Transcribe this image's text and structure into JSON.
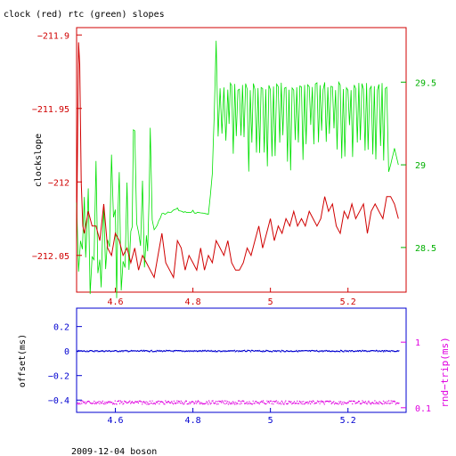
{
  "figure": {
    "title": "clock (red) rtc (green) slopes",
    "footer": "2009-12-04 boson"
  },
  "colors": {
    "clock": "#d00000",
    "rtc": "#00e000",
    "offset": "#0000d0",
    "rndtrip": "#e000e0",
    "frame_top": "#d00000",
    "frame_bottom": "#0000d0"
  },
  "chart_data": [
    {
      "type": "line",
      "title": "clock (red) rtc (green) slopes",
      "xlim": [
        4.5,
        5.35
      ],
      "x_ticks": [
        4.6,
        4.8,
        5,
        5.2
      ],
      "x_tick_labels": [
        "4.6",
        "4.8",
        "5",
        "5.2"
      ],
      "ylabel": "clockslope",
      "ylim": [
        -212.075,
        -211.895
      ],
      "y_ticks": [
        -211.9,
        -211.95,
        -212,
        -212.05
      ],
      "y_tick_labels": [
        "−211.9",
        "−211.95",
        "−212",
        "−212.05"
      ],
      "y2lim": [
        28.23,
        29.83
      ],
      "y2_ticks": [
        28.5,
        29,
        29.5
      ],
      "y2_tick_labels": [
        "28.5",
        "29",
        "29.5"
      ],
      "grid": false,
      "series": [
        {
          "color": "red",
          "axis": "left",
          "x": [
            4.5,
            4.505,
            4.508,
            4.512,
            4.516,
            4.52,
            4.53,
            4.54,
            4.55,
            4.56,
            4.57,
            4.58,
            4.59,
            4.6,
            4.61,
            4.62,
            4.63,
            4.64,
            4.65,
            4.66,
            4.67,
            4.68,
            4.69,
            4.7,
            4.71,
            4.72,
            4.73,
            4.74,
            4.75,
            4.76,
            4.77,
            4.78,
            4.79,
            4.8,
            4.81,
            4.82,
            4.83,
            4.84,
            4.85,
            4.86,
            4.87,
            4.88,
            4.89,
            4.9,
            4.91,
            4.92,
            4.93,
            4.94,
            4.95,
            4.96,
            4.97,
            4.98,
            4.99,
            5.0,
            5.01,
            5.02,
            5.03,
            5.04,
            5.05,
            5.06,
            5.07,
            5.08,
            5.09,
            5.1,
            5.11,
            5.12,
            5.13,
            5.14,
            5.15,
            5.16,
            5.17,
            5.18,
            5.19,
            5.2,
            5.21,
            5.22,
            5.23,
            5.24,
            5.25,
            5.26,
            5.27,
            5.28,
            5.29,
            5.3,
            5.31,
            5.32,
            5.33
          ],
          "y": [
            -212.04,
            -211.905,
            -211.92,
            -212.0,
            -212.03,
            -212.035,
            -212.02,
            -212.03,
            -212.03,
            -212.04,
            -212.015,
            -212.045,
            -212.05,
            -212.035,
            -212.04,
            -212.05,
            -212.045,
            -212.055,
            -212.045,
            -212.06,
            -212.05,
            -212.055,
            -212.06,
            -212.065,
            -212.05,
            -212.035,
            -212.055,
            -212.06,
            -212.065,
            -212.04,
            -212.045,
            -212.06,
            -212.05,
            -212.055,
            -212.06,
            -212.045,
            -212.06,
            -212.05,
            -212.055,
            -212.04,
            -212.045,
            -212.05,
            -212.04,
            -212.055,
            -212.06,
            -212.06,
            -212.055,
            -212.045,
            -212.05,
            -212.04,
            -212.03,
            -212.045,
            -212.035,
            -212.025,
            -212.04,
            -212.03,
            -212.035,
            -212.025,
            -212.03,
            -212.02,
            -212.03,
            -212.025,
            -212.03,
            -212.02,
            -212.025,
            -212.03,
            -212.025,
            -212.01,
            -212.02,
            -212.015,
            -212.03,
            -212.035,
            -212.02,
            -212.025,
            -212.015,
            -212.025,
            -212.02,
            -212.015,
            -212.035,
            -212.02,
            -212.015,
            -212.02,
            -212.025,
            -212.01,
            -212.01,
            -212.015,
            -212.025
          ]
        },
        {
          "color": "green",
          "axis": "right",
          "x": [
            4.5,
            4.51,
            4.52,
            4.53,
            4.54,
            4.55,
            4.56,
            4.57,
            4.58,
            4.59,
            4.6,
            4.61,
            4.62,
            4.63,
            4.64,
            4.65,
            4.66,
            4.67,
            4.68,
            4.69,
            4.7,
            4.72,
            4.74,
            4.76,
            4.78,
            4.8,
            4.82,
            4.84,
            4.85,
            4.855,
            4.86,
            4.87,
            4.88,
            4.89,
            4.9,
            4.92,
            4.94,
            4.96,
            4.98,
            5.0,
            5.02,
            5.04,
            5.06,
            5.08,
            5.1,
            5.12,
            5.14,
            5.16,
            5.18,
            5.2,
            5.22,
            5.24,
            5.26,
            5.28,
            5.3,
            5.31,
            5.32,
            5.33
          ],
          "y": [
            28.6,
            28.5,
            28.65,
            28.55,
            28.3,
            28.75,
            28.4,
            28.5,
            28.35,
            29.0,
            28.4,
            28.8,
            28.35,
            28.7,
            28.5,
            29.05,
            28.4,
            28.85,
            28.45,
            28.9,
            28.6,
            28.7,
            28.72,
            28.73,
            28.71,
            28.72,
            28.7,
            28.7,
            28.95,
            29.3,
            29.75,
            29.6,
            29.55,
            29.5,
            29.45,
            29.45,
            29.45,
            29.45,
            29.45,
            29.45,
            29.45,
            29.45,
            29.45,
            29.45,
            29.45,
            29.45,
            29.45,
            29.45,
            29.45,
            29.45,
            29.45,
            29.45,
            29.45,
            29.45,
            29.3,
            29.0,
            29.1,
            29.0
          ]
        }
      ]
    },
    {
      "type": "scatter",
      "xlim": [
        4.5,
        5.35
      ],
      "x_ticks": [
        4.6,
        4.8,
        5,
        5.2
      ],
      "x_tick_labels": [
        "4.6",
        "4.8",
        "5",
        "5.2"
      ],
      "ylabel": "offset(ms)",
      "ylim": [
        -0.5,
        0.35
      ],
      "y_ticks": [
        0.2,
        0,
        -0.2,
        -0.4
      ],
      "y_tick_labels": [
        "0.2",
        "0",
        "−0.2",
        "−0.4"
      ],
      "y2label": "rnd−trip(ms)",
      "y2_scale": "log",
      "y2lim": [
        0.085,
        3.3
      ],
      "y2_ticks": [
        1,
        0.1
      ],
      "y2_tick_labels": [
        "1",
        "0.1"
      ],
      "grid": false,
      "series": [
        {
          "color": "blue",
          "axis": "left",
          "x_range": [
            4.5,
            5.33
          ],
          "y_level": 0.0
        },
        {
          "color": "magenta",
          "axis": "right",
          "x_range": [
            4.5,
            5.33
          ],
          "y_level": 0.12
        }
      ]
    }
  ]
}
